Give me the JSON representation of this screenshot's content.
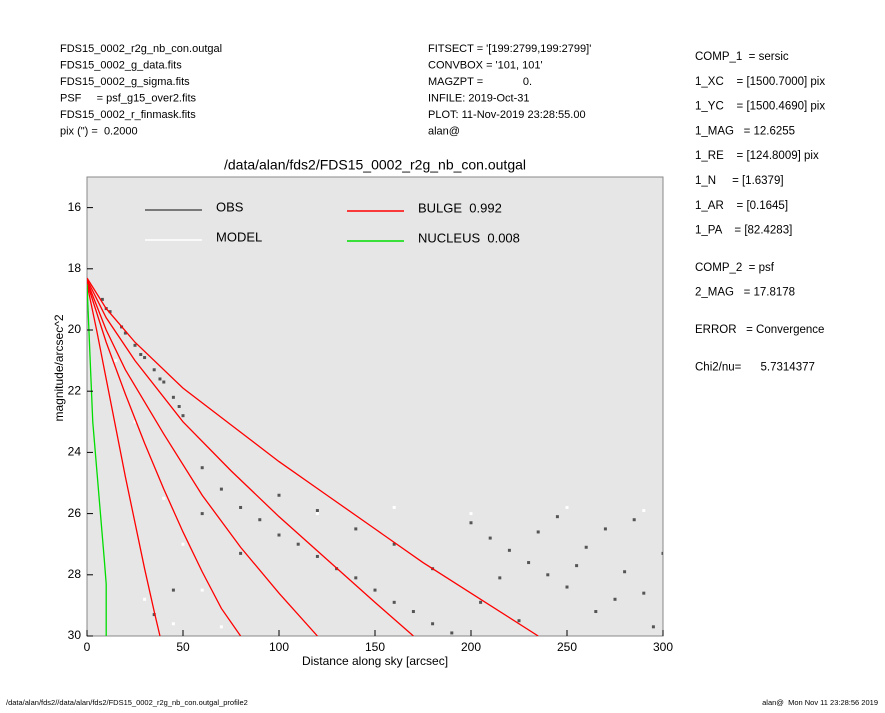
{
  "header": {
    "left": [
      "FDS15_0002_r2g_nb_con.outgal",
      "FDS15_0002_g_data.fits",
      "FDS15_0002_g_sigma.fits",
      "PSF     = psf_g15_over2.fits",
      "FDS15_0002_r_finmask.fits",
      "pix (\") =  0.2000"
    ],
    "middle": [
      "FITSECT = '[199:2799,199:2799]'",
      "CONVBOX = '101, 101'",
      "MAGZPT =             0.",
      "INFILE: 2019-Oct-31",
      "PLOT: 11-Nov-2019 23:28:55.00",
      "alan@"
    ],
    "right": [
      [
        "COMP_1  = sersic",
        "1_XC    = [1500.7000] pix",
        "1_YC    = [1500.4690] pix",
        "1_MAG   = 12.6255",
        "1_RE    = [124.8009] pix",
        "1_N     = [1.6379]",
        "1_AR    = [0.1645]",
        "1_PA    = [82.4283]"
      ],
      [
        "COMP_2  = psf",
        "2_MAG   = 17.8178"
      ],
      [
        "ERROR   = Convergence"
      ],
      [
        "Chi2/nu=      5.7314377"
      ]
    ]
  },
  "footer": {
    "left": "/data/alan/fds2//data/alan/fds2/FDS15_0002_r2g_nb_con.outgal_profile2",
    "right": "alan@  Mon Nov 11 23:28:56 2019"
  },
  "chart_data": {
    "type": "scatter",
    "title": "/data/alan/fds2/FDS15_0002_r2g_nb_con.outgal",
    "x_label": "Distance along sky [arcsec]",
    "y_label": "magnitude/arcsec^2",
    "xlim": [
      0,
      300
    ],
    "xticks": [
      0,
      50,
      100,
      150,
      200,
      250,
      300
    ],
    "ylim": [
      30,
      15
    ],
    "yticks": [
      16,
      18,
      20,
      22,
      24,
      26,
      28,
      30
    ],
    "background": "#e6e6e6",
    "series": [
      {
        "name": "OBS",
        "type": "scatter",
        "color": "#555555",
        "x": [
          8,
          10,
          12,
          18,
          20,
          25,
          28,
          30,
          35,
          38,
          40,
          45,
          48,
          50,
          60,
          70,
          80,
          90,
          100,
          110,
          120,
          130,
          140,
          150,
          160,
          170,
          180,
          190,
          200,
          210,
          220,
          230,
          240,
          250,
          260,
          270,
          280,
          290,
          300,
          205,
          225,
          245,
          265,
          285,
          295,
          255,
          215,
          235,
          275,
          160,
          140,
          120,
          100,
          180,
          60,
          80,
          45,
          35
        ],
        "values": [
          19.0,
          19.3,
          19.4,
          19.9,
          20.1,
          20.5,
          20.8,
          20.9,
          21.3,
          21.6,
          21.7,
          22.2,
          22.5,
          22.8,
          24.5,
          25.2,
          25.8,
          26.2,
          26.7,
          27.0,
          27.4,
          27.8,
          28.1,
          28.5,
          28.9,
          29.2,
          29.6,
          29.9,
          26.3,
          26.8,
          27.2,
          27.6,
          28.0,
          28.4,
          27.1,
          26.5,
          27.9,
          28.6,
          27.3,
          28.9,
          29.5,
          26.1,
          29.2,
          26.2,
          29.7,
          27.7,
          28.1,
          26.6,
          28.8,
          27.0,
          26.5,
          25.9,
          25.4,
          27.8,
          26.0,
          27.3,
          28.5,
          29.3
        ]
      },
      {
        "name": "MODEL",
        "type": "scatter",
        "color": "#ffffff",
        "x": [
          15,
          25,
          40,
          50,
          60,
          70,
          120,
          160,
          200,
          250,
          290,
          45,
          30
        ],
        "values": [
          21,
          23,
          25.5,
          27,
          28.5,
          29.7,
          26.0,
          25.8,
          26.0,
          25.8,
          25.9,
          29.6,
          28.8
        ]
      },
      {
        "name": "BULGE  0.992",
        "type": "line",
        "color": "#ff0000",
        "curves": [
          {
            "x": [
              0,
              10,
              25,
              50,
              75,
              100,
              125,
              150,
              175,
              200,
              235
            ],
            "values": [
              18.3,
              19.3,
              20.4,
              21.9,
              23.1,
              24.3,
              25.4,
              26.5,
              27.6,
              28.6,
              30
            ]
          },
          {
            "x": [
              0,
              10,
              25,
              50,
              75,
              100,
              125,
              150,
              170
            ],
            "values": [
              18.35,
              19.6,
              21.0,
              23.0,
              24.6,
              26.1,
              27.5,
              28.9,
              30
            ]
          },
          {
            "x": [
              0,
              10,
              20,
              40,
              60,
              80,
              100,
              120
            ],
            "values": [
              18.4,
              20.0,
              21.3,
              23.4,
              25.4,
              27.1,
              28.6,
              30
            ]
          },
          {
            "x": [
              0,
              10,
              20,
              30,
              40,
              50,
              60,
              70,
              80
            ],
            "values": [
              18.45,
              20.4,
              22.1,
              23.7,
              25.2,
              26.6,
              27.9,
              29.1,
              30
            ]
          },
          {
            "x": [
              0,
              5,
              10,
              15,
              20,
              25,
              30,
              35,
              38
            ],
            "values": [
              18.5,
              20,
              21.6,
              23.2,
              24.8,
              26.3,
              27.8,
              29.2,
              30
            ]
          }
        ]
      },
      {
        "name": "NUCLEUS  0.008",
        "type": "line",
        "color": "#00dd00",
        "curves": [
          {
            "x": [
              0,
              1,
              2,
              3,
              5,
              7,
              9,
              10,
              10,
              10
            ],
            "values": [
              18.5,
              20,
              21.5,
              23,
              24.5,
              26,
              27.5,
              28.3,
              29,
              30
            ]
          }
        ]
      }
    ]
  }
}
